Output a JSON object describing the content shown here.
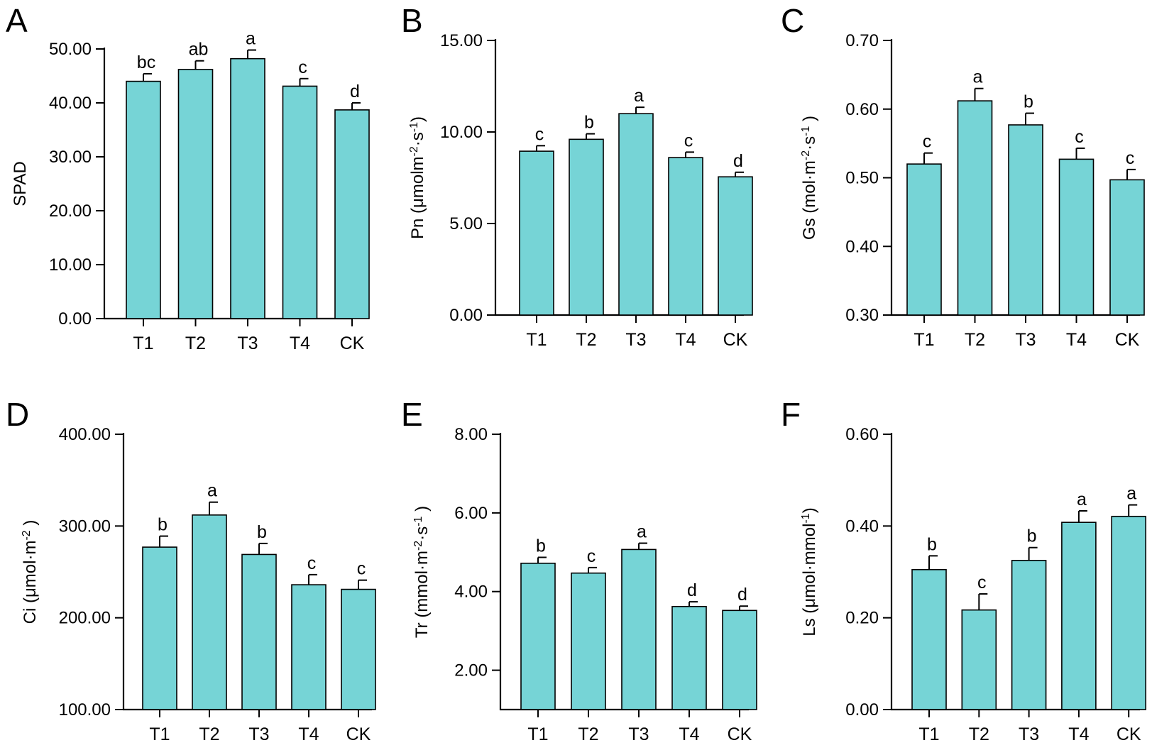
{
  "chart_data": [
    {
      "type": "bar",
      "panel": "A",
      "categories": [
        "T1",
        "T2",
        "T3",
        "T4",
        "CK"
      ],
      "values": [
        44.0,
        46.2,
        48.2,
        43.1,
        38.7
      ],
      "errors": [
        1.4,
        1.6,
        1.6,
        1.4,
        1.3
      ],
      "significance": [
        "bc",
        "ab",
        "a",
        "c",
        "d"
      ],
      "ylabel": "SPAD",
      "ylabel_parts": [
        {
          "t": "SPAD"
        }
      ],
      "ylim": [
        0,
        50
      ],
      "yticks": [
        0,
        10,
        20,
        30,
        40,
        50
      ],
      "ytick_labels": [
        "0.00",
        "10.00",
        "20.00",
        "30.00",
        "40.00",
        "50.00"
      ]
    },
    {
      "type": "bar",
      "panel": "B",
      "categories": [
        "T1",
        "T2",
        "T3",
        "T4",
        "CK"
      ],
      "values": [
        8.95,
        9.6,
        11.0,
        8.6,
        7.55
      ],
      "errors": [
        0.3,
        0.3,
        0.35,
        0.3,
        0.25
      ],
      "significance": [
        "c",
        "b",
        "a",
        "c",
        "d"
      ],
      "ylabel": "Pn (μmolm-2·s-1)",
      "ylabel_parts": [
        {
          "t": "Pn (μmolm"
        },
        {
          "t": "-2",
          "sup": true
        },
        {
          "t": "·s"
        },
        {
          "t": "-1",
          "sup": true
        },
        {
          "t": ")"
        }
      ],
      "ylim": [
        0,
        15
      ],
      "yticks": [
        0,
        5,
        10,
        15
      ],
      "ytick_labels": [
        "0.00",
        "5.00",
        "10.00",
        "15.00"
      ]
    },
    {
      "type": "bar",
      "panel": "C",
      "categories": [
        "T1",
        "T2",
        "T3",
        "T4",
        "CK"
      ],
      "values": [
        0.52,
        0.612,
        0.577,
        0.527,
        0.497
      ],
      "errors": [
        0.016,
        0.018,
        0.017,
        0.016,
        0.015
      ],
      "significance": [
        "c",
        "a",
        "b",
        "c",
        "c"
      ],
      "ylabel": "Gs (mol·m-2·s-1 )",
      "ylabel_parts": [
        {
          "t": "Gs (mol·m"
        },
        {
          "t": "-2",
          "sup": true
        },
        {
          "t": "·s"
        },
        {
          "t": "-1",
          "sup": true
        },
        {
          "t": " )"
        }
      ],
      "ylim": [
        0.3,
        0.7
      ],
      "yticks": [
        0.3,
        0.4,
        0.5,
        0.6,
        0.7
      ],
      "ytick_labels": [
        "0.30",
        "0.40",
        "0.50",
        "0.60",
        "0.70"
      ]
    },
    {
      "type": "bar",
      "panel": "D",
      "categories": [
        "T1",
        "T2",
        "T3",
        "T4",
        "CK"
      ],
      "values": [
        277,
        312,
        269,
        236,
        231
      ],
      "errors": [
        12,
        14,
        12,
        11,
        10
      ],
      "significance": [
        "b",
        "a",
        "b",
        "c",
        "c"
      ],
      "ylabel": "Ci (μmol·m-2 )",
      "ylabel_parts": [
        {
          "t": "Ci (μmol·m"
        },
        {
          "t": "-2",
          "sup": true
        },
        {
          "t": " )"
        }
      ],
      "ylim": [
        100,
        400
      ],
      "yticks": [
        100,
        200,
        300,
        400
      ],
      "ytick_labels": [
        "100.00",
        "200.00",
        "300.00",
        "400.00"
      ]
    },
    {
      "type": "bar",
      "panel": "E",
      "categories": [
        "T1",
        "T2",
        "T3",
        "T4",
        "CK"
      ],
      "values": [
        4.72,
        4.47,
        5.07,
        3.62,
        3.52
      ],
      "errors": [
        0.15,
        0.14,
        0.16,
        0.12,
        0.11
      ],
      "significance": [
        "b",
        "c",
        "a",
        "d",
        "d"
      ],
      "ylabel": "Tr (mmol·m-2·s-1 )",
      "ylabel_parts": [
        {
          "t": "Tr (mmol·m"
        },
        {
          "t": "-2",
          "sup": true
        },
        {
          "t": "·s"
        },
        {
          "t": "-1",
          "sup": true
        },
        {
          "t": " )"
        }
      ],
      "ylim": [
        1,
        8
      ],
      "yticks": [
        2,
        4,
        6,
        8
      ],
      "ytick_labels": [
        "2.00",
        "4.00",
        "6.00",
        "8.00"
      ]
    },
    {
      "type": "bar",
      "panel": "F",
      "categories": [
        "T1",
        "T2",
        "T3",
        "T4",
        "CK"
      ],
      "values": [
        0.305,
        0.217,
        0.325,
        0.408,
        0.421
      ],
      "errors": [
        0.03,
        0.035,
        0.028,
        0.025,
        0.025
      ],
      "significance": [
        "b",
        "c",
        "b",
        "a",
        "a"
      ],
      "ylabel": "Ls (μmol·mmol-1)",
      "ylabel_parts": [
        {
          "t": "Ls (μmol·mmol"
        },
        {
          "t": "-1",
          "sup": true
        },
        {
          "t": ")"
        }
      ],
      "ylim": [
        0,
        0.6
      ],
      "yticks": [
        0,
        0.2,
        0.4,
        0.6
      ],
      "ytick_labels": [
        "0.00",
        "0.20",
        "0.40",
        "0.60"
      ]
    }
  ],
  "colors": {
    "bar_fill": "#76D4D6",
    "stroke": "#000000"
  }
}
